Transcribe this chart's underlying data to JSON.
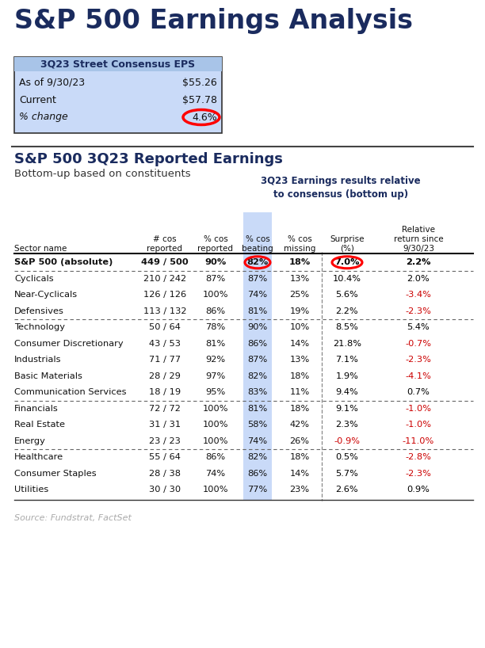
{
  "title": "S&P 500 Earnings Analysis",
  "title_color": "#1a2b5e",
  "eps_box_title": "3Q23 Street Consensus EPS",
  "eps_rows": [
    [
      "As of 9/30/23",
      "$55.26",
      "normal"
    ],
    [
      "Current",
      "$57.78",
      "normal"
    ],
    [
      "% change",
      "4.6%",
      "italic"
    ]
  ],
  "eps_box_bg": "#c9daf8",
  "section2_title": "S&P 500 3Q23 Reported Earnings",
  "section2_sub": "Bottom-up based on constituents",
  "section2_header_right": "3Q23 Earnings results relative\nto consensus (bottom up)",
  "beating_col_bg": "#c9daf8",
  "rows": [
    {
      "sector": "S&P 500 (absolute)",
      "cos": "449 / 500",
      "pct_rep": "90%",
      "beating": "82%",
      "missing": "18%",
      "surprise": "7.0%",
      "rel_return": "2.2%",
      "bold": true,
      "circle_beating": true,
      "circle_surprise": true,
      "surprise_color": "#000000",
      "rel_color": "#000000"
    },
    {
      "sector": "Cyclicals",
      "cos": "210 / 242",
      "pct_rep": "87%",
      "beating": "87%",
      "missing": "13%",
      "surprise": "10.4%",
      "rel_return": "2.0%",
      "bold": false,
      "surprise_color": "#000000",
      "rel_color": "#000000"
    },
    {
      "sector": "Near-Cyclicals",
      "cos": "126 / 126",
      "pct_rep": "100%",
      "beating": "74%",
      "missing": "25%",
      "surprise": "5.6%",
      "rel_return": "-3.4%",
      "bold": false,
      "surprise_color": "#000000",
      "rel_color": "#cc0000"
    },
    {
      "sector": "Defensives",
      "cos": "113 / 132",
      "pct_rep": "86%",
      "beating": "81%",
      "missing": "19%",
      "surprise": "2.2%",
      "rel_return": "-2.3%",
      "bold": false,
      "surprise_color": "#000000",
      "rel_color": "#cc0000"
    },
    {
      "sector": "Technology",
      "cos": "50 / 64",
      "pct_rep": "78%",
      "beating": "90%",
      "missing": "10%",
      "surprise": "8.5%",
      "rel_return": "5.4%",
      "bold": false,
      "surprise_color": "#000000",
      "rel_color": "#000000"
    },
    {
      "sector": "Consumer Discretionary",
      "cos": "43 / 53",
      "pct_rep": "81%",
      "beating": "86%",
      "missing": "14%",
      "surprise": "21.8%",
      "rel_return": "-0.7%",
      "bold": false,
      "surprise_color": "#000000",
      "rel_color": "#cc0000"
    },
    {
      "sector": "Industrials",
      "cos": "71 / 77",
      "pct_rep": "92%",
      "beating": "87%",
      "missing": "13%",
      "surprise": "7.1%",
      "rel_return": "-2.3%",
      "bold": false,
      "surprise_color": "#000000",
      "rel_color": "#cc0000"
    },
    {
      "sector": "Basic Materials",
      "cos": "28 / 29",
      "pct_rep": "97%",
      "beating": "82%",
      "missing": "18%",
      "surprise": "1.9%",
      "rel_return": "-4.1%",
      "bold": false,
      "surprise_color": "#000000",
      "rel_color": "#cc0000"
    },
    {
      "sector": "Communication Services",
      "cos": "18 / 19",
      "pct_rep": "95%",
      "beating": "83%",
      "missing": "11%",
      "surprise": "9.4%",
      "rel_return": "0.7%",
      "bold": false,
      "surprise_color": "#000000",
      "rel_color": "#000000"
    },
    {
      "sector": "Financials",
      "cos": "72 / 72",
      "pct_rep": "100%",
      "beating": "81%",
      "missing": "18%",
      "surprise": "9.1%",
      "rel_return": "-1.0%",
      "bold": false,
      "surprise_color": "#000000",
      "rel_color": "#cc0000"
    },
    {
      "sector": "Real Estate",
      "cos": "31 / 31",
      "pct_rep": "100%",
      "beating": "58%",
      "missing": "42%",
      "surprise": "2.3%",
      "rel_return": "-1.0%",
      "bold": false,
      "surprise_color": "#000000",
      "rel_color": "#cc0000"
    },
    {
      "sector": "Energy",
      "cos": "23 / 23",
      "pct_rep": "100%",
      "beating": "74%",
      "missing": "26%",
      "surprise": "-0.9%",
      "rel_return": "-11.0%",
      "bold": false,
      "surprise_color": "#cc0000",
      "rel_color": "#cc0000"
    },
    {
      "sector": "Healthcare",
      "cos": "55 / 64",
      "pct_rep": "86%",
      "beating": "82%",
      "missing": "18%",
      "surprise": "0.5%",
      "rel_return": "-2.8%",
      "bold": false,
      "surprise_color": "#000000",
      "rel_color": "#cc0000"
    },
    {
      "sector": "Consumer Staples",
      "cos": "28 / 38",
      "pct_rep": "74%",
      "beating": "86%",
      "missing": "14%",
      "surprise": "5.7%",
      "rel_return": "-2.3%",
      "bold": false,
      "surprise_color": "#000000",
      "rel_color": "#cc0000"
    },
    {
      "sector": "Utilities",
      "cos": "30 / 30",
      "pct_rep": "100%",
      "beating": "77%",
      "missing": "23%",
      "surprise": "2.6%",
      "rel_return": "0.9%",
      "bold": false,
      "surprise_color": "#000000",
      "rel_color": "#000000"
    }
  ],
  "group_after": [
    0,
    3,
    8,
    11
  ],
  "source_text": "Source: Fundstrat, FactSet"
}
